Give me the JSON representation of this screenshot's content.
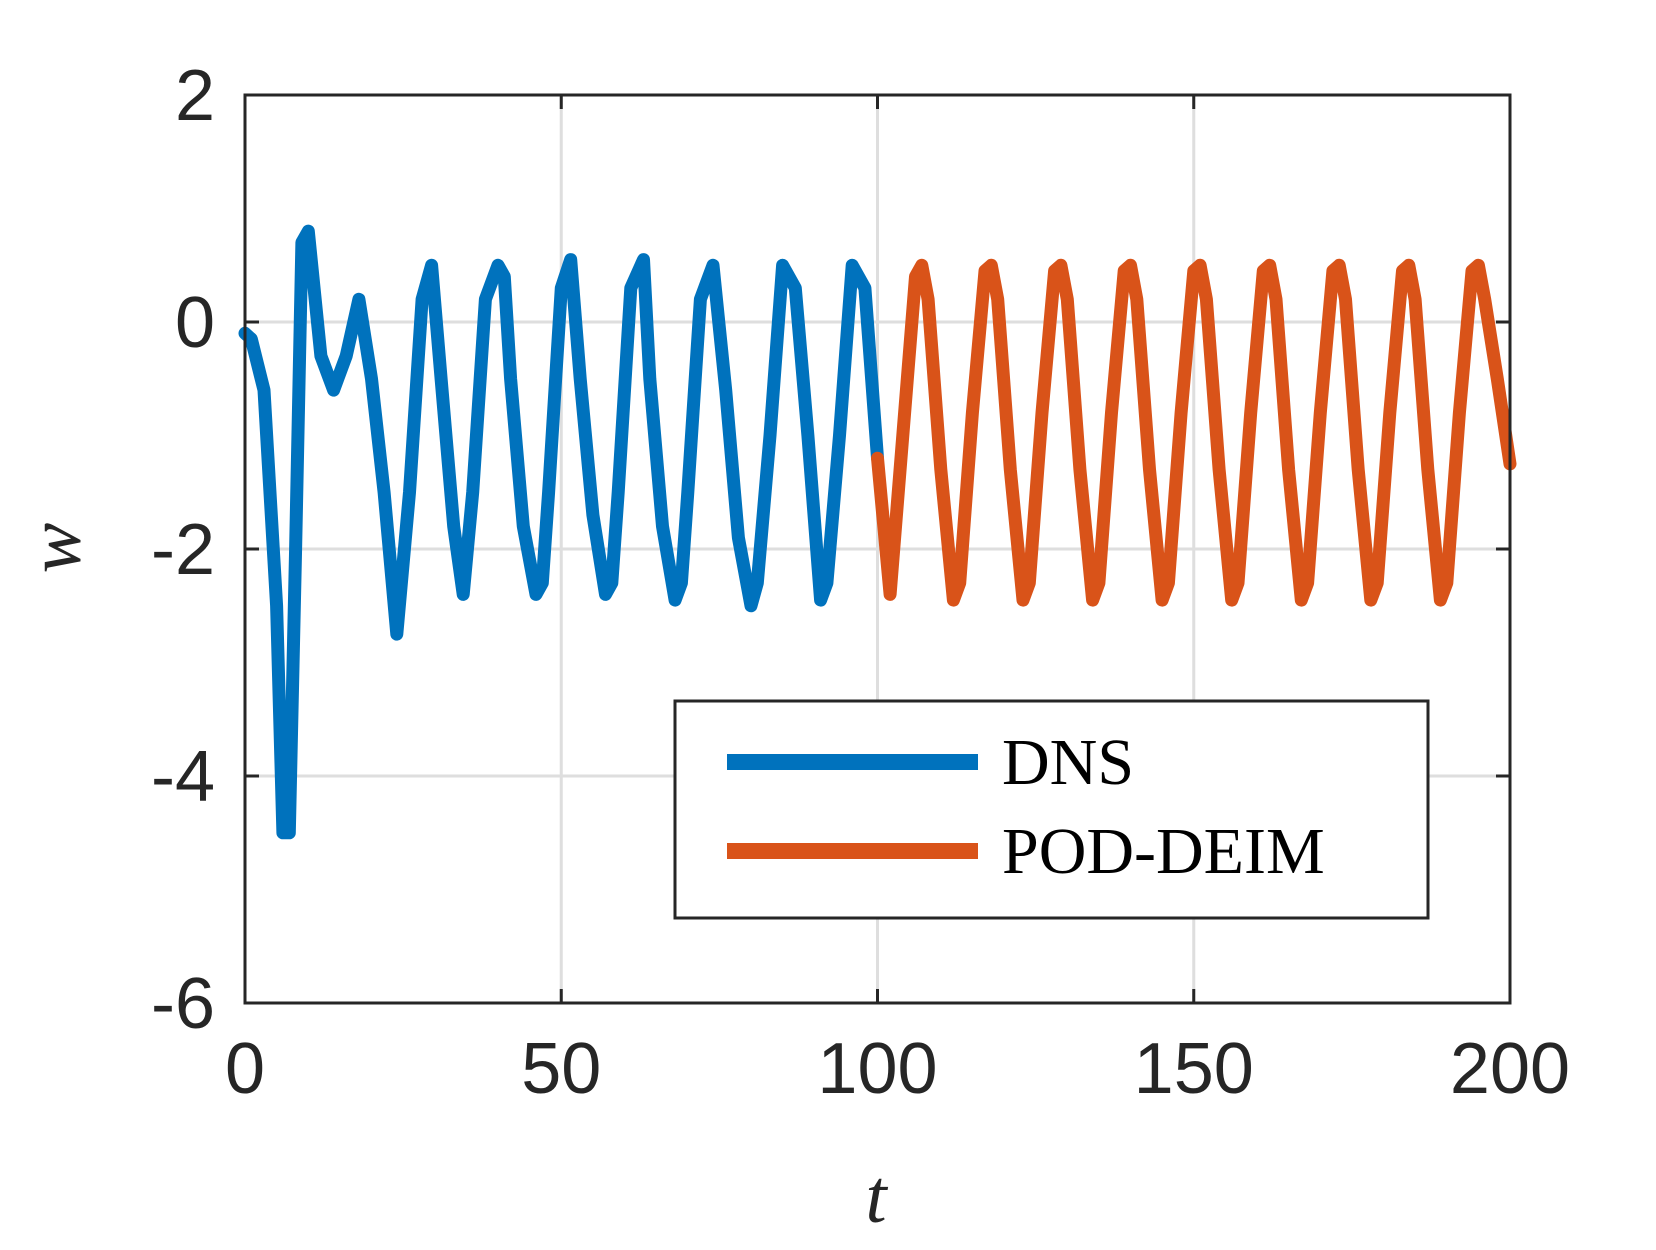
{
  "chart_data": {
    "type": "line",
    "xlabel": "t",
    "ylabel": "w",
    "xlim": [
      0,
      200
    ],
    "ylim": [
      -6,
      2
    ],
    "xticks": [
      0,
      50,
      100,
      150,
      200
    ],
    "yticks": [
      -6,
      -4,
      -2,
      0,
      2
    ],
    "grid": true,
    "legend_position": "bottom-right",
    "series": [
      {
        "name": "DNS",
        "color": "#0072BD",
        "x": [
          0,
          1,
          3,
          5,
          6,
          7,
          8,
          9,
          10,
          12,
          14,
          16,
          18,
          20,
          22,
          24,
          26,
          28,
          29.5,
          31,
          33,
          34.5,
          36,
          38,
          40,
          41,
          42,
          44,
          46,
          47,
          48,
          50,
          51.5,
          53,
          55,
          57,
          58,
          59,
          61,
          63,
          64,
          66,
          68,
          69,
          70,
          72,
          74,
          76,
          78,
          80,
          81,
          83,
          85,
          87,
          89,
          91,
          92,
          94,
          96,
          98,
          100
        ],
        "y": [
          -0.1,
          -0.15,
          -0.6,
          -2.5,
          -4.5,
          -4.5,
          -2.0,
          0.7,
          0.8,
          -0.3,
          -0.6,
          -0.3,
          0.2,
          -0.5,
          -1.5,
          -2.75,
          -1.5,
          0.2,
          0.5,
          -0.5,
          -1.8,
          -2.4,
          -1.5,
          0.2,
          0.5,
          0.4,
          -0.5,
          -1.8,
          -2.4,
          -2.3,
          -1.5,
          0.3,
          0.55,
          -0.5,
          -1.7,
          -2.4,
          -2.3,
          -1.5,
          0.3,
          0.55,
          -0.5,
          -1.8,
          -2.45,
          -2.3,
          -1.5,
          0.2,
          0.5,
          -0.6,
          -1.9,
          -2.5,
          -2.3,
          -1.0,
          0.5,
          0.3,
          -1.0,
          -2.45,
          -2.3,
          -1.0,
          0.5,
          0.3,
          -1.2
        ]
      },
      {
        "name": "POD-DEIM",
        "color": "#D95319",
        "x": [
          100,
          102,
          104,
          106,
          107,
          108,
          110,
          112,
          113,
          115,
          117,
          118,
          119,
          121,
          123,
          124,
          126,
          128,
          129,
          130,
          132,
          134,
          135,
          137,
          139,
          140,
          141,
          143,
          145,
          146,
          148,
          150,
          151,
          152,
          154,
          156,
          157,
          159,
          161,
          162,
          163,
          165,
          167,
          168,
          170,
          172,
          173,
          174,
          176,
          178,
          179,
          181,
          183,
          184,
          185,
          187,
          189,
          190,
          192,
          194,
          195,
          196,
          198,
          200
        ],
        "y": [
          -1.2,
          -2.4,
          -1.0,
          0.4,
          0.5,
          0.2,
          -1.3,
          -2.45,
          -2.3,
          -0.8,
          0.45,
          0.5,
          0.2,
          -1.3,
          -2.45,
          -2.3,
          -0.8,
          0.45,
          0.5,
          0.2,
          -1.3,
          -2.45,
          -2.3,
          -0.8,
          0.45,
          0.5,
          0.2,
          -1.3,
          -2.45,
          -2.3,
          -0.8,
          0.45,
          0.5,
          0.2,
          -1.3,
          -2.45,
          -2.3,
          -0.8,
          0.45,
          0.5,
          0.2,
          -1.3,
          -2.45,
          -2.3,
          -0.8,
          0.45,
          0.5,
          0.2,
          -1.3,
          -2.45,
          -2.3,
          -0.8,
          0.45,
          0.5,
          0.2,
          -1.3,
          -2.45,
          -2.3,
          -0.8,
          0.45,
          0.5,
          0.2,
          -0.5,
          -1.25
        ]
      }
    ]
  }
}
